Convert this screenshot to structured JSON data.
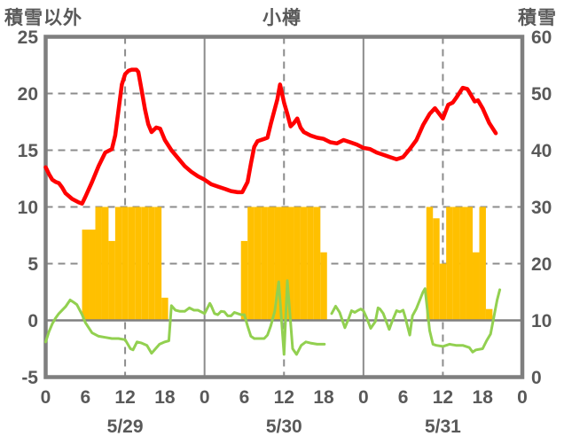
{
  "header": {
    "left_axis_title": "積雪以外",
    "chart_title": "小樽",
    "right_axis_title": "積雪"
  },
  "colors": {
    "red_line": "#FF0000",
    "green_line": "#92D050",
    "bars": "#FFC000",
    "grid": "#8C8C8C",
    "frame": "#7F7F7F",
    "zero_line": "#808080",
    "text": "#595959"
  },
  "chart_data": {
    "type": "combo",
    "title": "小樽",
    "left_axis": {
      "title": "積雪以外",
      "min": -5,
      "max": 25,
      "ticks": [
        25,
        20,
        15,
        10,
        5,
        0,
        -5
      ]
    },
    "right_axis": {
      "title": "積雪",
      "min": 0,
      "max": 60,
      "ticks": [
        60,
        50,
        40,
        30,
        20,
        10,
        0
      ]
    },
    "x_axis": {
      "hours_total": 72,
      "day_tick_hours": [
        0,
        6,
        12,
        18
      ],
      "days": [
        {
          "label": "5/29"
        },
        {
          "label": "5/30"
        },
        {
          "label": "5/31"
        }
      ],
      "end_hour_label": "0",
      "solid_vertical_hours": [
        24,
        48
      ],
      "dashed_vertical_hours": [
        12,
        36,
        60
      ]
    },
    "series": [
      {
        "name": "yellow-bars",
        "type": "bar",
        "axis": "left",
        "bar_width_hours": 1,
        "bars": [
          [
            6,
            8
          ],
          [
            7,
            8
          ],
          [
            8,
            10
          ],
          [
            9,
            10
          ],
          [
            10,
            7
          ],
          [
            11,
            10
          ],
          [
            12,
            10
          ],
          [
            13,
            10
          ],
          [
            14,
            10
          ],
          [
            15,
            10
          ],
          [
            16,
            10
          ],
          [
            17,
            10
          ],
          [
            18,
            2
          ],
          [
            30,
            7
          ],
          [
            31,
            10
          ],
          [
            32,
            10
          ],
          [
            33,
            10
          ],
          [
            34,
            10
          ],
          [
            35,
            10
          ],
          [
            36,
            10
          ],
          [
            37,
            10
          ],
          [
            38,
            10
          ],
          [
            39,
            10
          ],
          [
            40,
            10
          ],
          [
            41,
            10
          ],
          [
            42,
            6
          ],
          [
            58,
            10
          ],
          [
            59,
            9
          ],
          [
            60,
            5
          ],
          [
            61,
            10
          ],
          [
            62,
            10
          ],
          [
            63,
            10
          ],
          [
            64,
            10
          ],
          [
            65,
            6
          ],
          [
            66,
            10
          ],
          [
            67,
            1
          ]
        ]
      },
      {
        "name": "green-line",
        "type": "line",
        "axis": "left",
        "segments": [
          [
            [
              0,
              -1.9
            ],
            [
              0.5,
              -1.0
            ],
            [
              1,
              -0.3
            ],
            [
              1.5,
              0.2
            ],
            [
              2,
              0.6
            ],
            [
              3,
              1.2
            ],
            [
              3.7,
              1.8
            ],
            [
              4.2,
              1.6
            ],
            [
              4.7,
              1.4
            ],
            [
              5.5,
              0.5
            ],
            [
              6,
              -0.2
            ],
            [
              7,
              -1.1
            ],
            [
              8,
              -1.4
            ],
            [
              9,
              -1.5
            ],
            [
              10,
              -1.6
            ],
            [
              11,
              -1.6
            ],
            [
              12,
              -1.7
            ],
            [
              12.8,
              -2.5
            ],
            [
              13.2,
              -2.6
            ],
            [
              13.8,
              -1.9
            ],
            [
              14.5,
              -2.0
            ],
            [
              15.3,
              -2.2
            ],
            [
              16,
              -2.9
            ],
            [
              16.6,
              -2.5
            ],
            [
              17.2,
              -2.1
            ],
            [
              18,
              -1.9
            ],
            [
              18.6,
              -1.8
            ],
            [
              19,
              1.3
            ],
            [
              19.6,
              0.9
            ],
            [
              20.3,
              0.8
            ],
            [
              21,
              0.8
            ],
            [
              21.7,
              1.1
            ],
            [
              22.4,
              0.9
            ],
            [
              23,
              0.9
            ],
            [
              24,
              0.6
            ],
            [
              24.8,
              1.5
            ],
            [
              25,
              1.3
            ],
            [
              25.5,
              0.6
            ],
            [
              26,
              0.5
            ],
            [
              26.5,
              0.8
            ],
            [
              27,
              0.75
            ],
            [
              27.5,
              0.4
            ],
            [
              28,
              0.4
            ],
            [
              28.5,
              0.7
            ],
            [
              29,
              0.6
            ],
            [
              29.5,
              0.5
            ],
            [
              30,
              0.5
            ],
            [
              30.5,
              -0.5
            ],
            [
              31,
              -1.4
            ],
            [
              31.5,
              -1.6
            ],
            [
              32,
              -1.6
            ],
            [
              33,
              -1.6
            ],
            [
              33.5,
              -1.3
            ],
            [
              34,
              -0.5
            ],
            [
              34.6,
              0.8
            ],
            [
              35.2,
              3.4
            ],
            [
              36,
              -3.0
            ],
            [
              36.5,
              3.5
            ],
            [
              37.3,
              -2.5
            ],
            [
              37.9,
              -3.0
            ],
            [
              38.6,
              -2.2
            ],
            [
              39.3,
              -1.9
            ],
            [
              40,
              -2.0
            ],
            [
              41,
              -2.1
            ],
            [
              42.1,
              -2.1
            ]
          ],
          [
            [
              43.2,
              0.6
            ],
            [
              43.8,
              1.25
            ],
            [
              44.4,
              0.7
            ],
            [
              45.2,
              -0.65
            ],
            [
              45.8,
              0.2
            ],
            [
              46.2,
              0.85
            ],
            [
              46.7,
              0.7
            ],
            [
              47.1,
              0.85
            ],
            [
              47.6,
              1.0
            ],
            [
              48,
              0.85
            ],
            [
              48.5,
              0.2
            ],
            [
              49.1,
              -0.7
            ],
            [
              49.8,
              -0.1
            ],
            [
              50.2,
              1.1
            ],
            [
              50.5,
              1.0
            ],
            [
              51,
              0.6
            ],
            [
              51.9,
              -0.8
            ],
            [
              52.3,
              -0.15
            ],
            [
              53,
              0.85
            ],
            [
              53.5,
              0.75
            ],
            [
              54,
              0.9
            ],
            [
              54.3,
              0.3
            ],
            [
              55,
              -1.3
            ],
            [
              55.4,
              0.4
            ],
            [
              56,
              1.05
            ],
            [
              57,
              2.5
            ],
            [
              57.3,
              2.8
            ],
            [
              58,
              -0.9
            ],
            [
              58.5,
              -2.1
            ],
            [
              59,
              -2.2
            ],
            [
              60,
              -2.3
            ],
            [
              61,
              -2.1
            ],
            [
              62,
              -2.2
            ],
            [
              63,
              -2.2
            ],
            [
              64,
              -2.4
            ],
            [
              64.5,
              -2.8
            ],
            [
              65,
              -2.6
            ],
            [
              66,
              -2.5
            ],
            [
              66.6,
              -1.8
            ],
            [
              67.2,
              -1.2
            ],
            [
              67.7,
              0.3
            ],
            [
              68.2,
              1.8
            ],
            [
              68.6,
              2.7
            ]
          ]
        ]
      },
      {
        "name": "red-line",
        "type": "line",
        "axis": "left",
        "points": [
          [
            0,
            13.5
          ],
          [
            0.5,
            12.9
          ],
          [
            1,
            12.4
          ],
          [
            1.5,
            12.2
          ],
          [
            2,
            12.1
          ],
          [
            2.5,
            11.7
          ],
          [
            3,
            11.2
          ],
          [
            4,
            10.7
          ],
          [
            5,
            10.4
          ],
          [
            5.5,
            10.3
          ],
          [
            6,
            10.9
          ],
          [
            7,
            12.2
          ],
          [
            8,
            13.6
          ],
          [
            9,
            14.8
          ],
          [
            10,
            15.1
          ],
          [
            10.5,
            16.3
          ],
          [
            11,
            18.5
          ],
          [
            11.5,
            20.8
          ],
          [
            12,
            21.7
          ],
          [
            12.5,
            22.0
          ],
          [
            13,
            22.1
          ],
          [
            13.7,
            22.1
          ],
          [
            14,
            21.9
          ],
          [
            14.5,
            20.3
          ],
          [
            15,
            18.6
          ],
          [
            15.5,
            17.3
          ],
          [
            16,
            16.6
          ],
          [
            16.7,
            17.0
          ],
          [
            17.3,
            16.9
          ],
          [
            18,
            15.9
          ],
          [
            19,
            15.0
          ],
          [
            20,
            14.3
          ],
          [
            21,
            13.6
          ],
          [
            22,
            13.1
          ],
          [
            23,
            12.7
          ],
          [
            24,
            12.4
          ],
          [
            25,
            12.0
          ],
          [
            26,
            11.8
          ],
          [
            27,
            11.6
          ],
          [
            28,
            11.4
          ],
          [
            29,
            11.3
          ],
          [
            29.7,
            11.3
          ],
          [
            30.5,
            12.2
          ],
          [
            31,
            13.8
          ],
          [
            31.5,
            15.3
          ],
          [
            32,
            15.8
          ],
          [
            33,
            16.0
          ],
          [
            33.5,
            16.1
          ],
          [
            34,
            17.3
          ],
          [
            35,
            19.5
          ],
          [
            35.4,
            20.8
          ],
          [
            36,
            19.2
          ],
          [
            36.5,
            18.2
          ],
          [
            37,
            17.1
          ],
          [
            37.5,
            17.4
          ],
          [
            38,
            17.8
          ],
          [
            38.5,
            17.0
          ],
          [
            39,
            16.6
          ],
          [
            40,
            16.3
          ],
          [
            41,
            16.1
          ],
          [
            42,
            16.0
          ],
          [
            43,
            15.7
          ],
          [
            44,
            15.6
          ],
          [
            45,
            15.9
          ],
          [
            46,
            15.7
          ],
          [
            47,
            15.5
          ],
          [
            48,
            15.2
          ],
          [
            49,
            15.1
          ],
          [
            50,
            14.8
          ],
          [
            51,
            14.6
          ],
          [
            52,
            14.4
          ],
          [
            53,
            14.2
          ],
          [
            54,
            14.4
          ],
          [
            55,
            15.1
          ],
          [
            56,
            15.9
          ],
          [
            57,
            17.2
          ],
          [
            58,
            18.2
          ],
          [
            58.8,
            18.7
          ],
          [
            60,
            17.8
          ],
          [
            60.8,
            19.0
          ],
          [
            61.5,
            19.2
          ],
          [
            62,
            19.6
          ],
          [
            63,
            20.5
          ],
          [
            63.7,
            20.4
          ],
          [
            64,
            20.1
          ],
          [
            64.8,
            19.3
          ],
          [
            65.3,
            19.4
          ],
          [
            66,
            18.7
          ],
          [
            67,
            17.4
          ],
          [
            68,
            16.5
          ]
        ]
      }
    ]
  }
}
